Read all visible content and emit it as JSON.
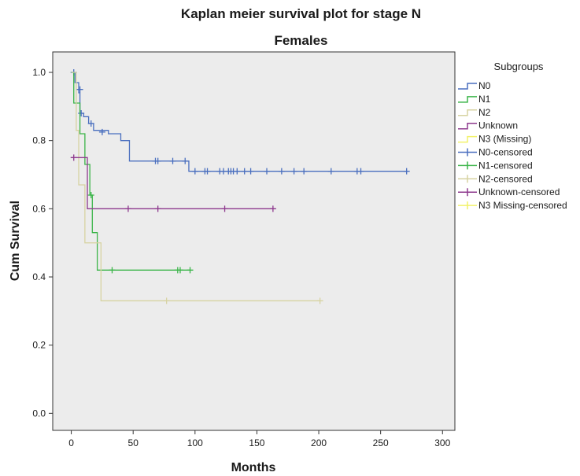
{
  "chart_data": {
    "type": "line",
    "title": "Kaplan meier survival plot for stage N",
    "subtitle": "Females",
    "xlabel": "Months",
    "ylabel": "Cum Survival",
    "xlim": [
      -15,
      310
    ],
    "ylim": [
      -0.05,
      1.06
    ],
    "xticks": [
      0,
      50,
      100,
      150,
      200,
      250,
      300
    ],
    "yticks": [
      0.0,
      0.2,
      0.4,
      0.6,
      0.8,
      1.0
    ],
    "grid": false,
    "legend_title": "Subgroups",
    "legend_position": "right",
    "plot_background": "#ececec",
    "series": [
      {
        "name": "N0",
        "color": "#4a6fbf",
        "steps": [
          [
            0,
            1.0
          ],
          [
            3,
            0.97
          ],
          [
            6,
            0.94
          ],
          [
            7,
            0.88
          ],
          [
            10,
            0.87
          ],
          [
            14,
            0.85
          ],
          [
            18,
            0.83
          ],
          [
            30,
            0.82
          ],
          [
            40,
            0.8
          ],
          [
            47,
            0.74
          ],
          [
            95,
            0.71
          ],
          [
            271,
            0.71
          ]
        ],
        "censored": [
          [
            2,
            1.0
          ],
          [
            7,
            0.95
          ],
          [
            8,
            0.88
          ],
          [
            16,
            0.85
          ],
          [
            25,
            0.825
          ],
          [
            68,
            0.74
          ],
          [
            70,
            0.74
          ],
          [
            82,
            0.74
          ],
          [
            92,
            0.74
          ],
          [
            100,
            0.71
          ],
          [
            108,
            0.71
          ],
          [
            110,
            0.71
          ],
          [
            120,
            0.71
          ],
          [
            123,
            0.71
          ],
          [
            127,
            0.71
          ],
          [
            129,
            0.71
          ],
          [
            131,
            0.71
          ],
          [
            134,
            0.71
          ],
          [
            140,
            0.71
          ],
          [
            145,
            0.71
          ],
          [
            158,
            0.71
          ],
          [
            170,
            0.71
          ],
          [
            180,
            0.71
          ],
          [
            188,
            0.71
          ],
          [
            210,
            0.71
          ],
          [
            231,
            0.71
          ],
          [
            234,
            0.71
          ],
          [
            271,
            0.71
          ]
        ]
      },
      {
        "name": "N1",
        "color": "#3cb54a",
        "steps": [
          [
            0,
            1.0
          ],
          [
            2,
            0.91
          ],
          [
            7,
            0.82
          ],
          [
            11,
            0.73
          ],
          [
            15,
            0.64
          ],
          [
            17,
            0.53
          ],
          [
            21,
            0.42
          ],
          [
            96,
            0.42
          ]
        ],
        "censored": [
          [
            16,
            0.64
          ],
          [
            33,
            0.42
          ],
          [
            86,
            0.42
          ],
          [
            88,
            0.42
          ],
          [
            96,
            0.42
          ]
        ]
      },
      {
        "name": "N2",
        "color": "#d7d3a2",
        "steps": [
          [
            0,
            1.0
          ],
          [
            4,
            0.83
          ],
          [
            6,
            0.67
          ],
          [
            11,
            0.5
          ],
          [
            20,
            0.5
          ],
          [
            24,
            0.33
          ],
          [
            201,
            0.33
          ]
        ],
        "censored": [
          [
            77,
            0.33
          ],
          [
            201,
            0.33
          ]
        ]
      },
      {
        "name": "Unknown",
        "color": "#8e3a8e",
        "steps": [
          [
            0,
            0.75
          ],
          [
            13,
            0.6
          ],
          [
            164,
            0.6
          ]
        ],
        "censored": [
          [
            2,
            0.75
          ],
          [
            46,
            0.6
          ],
          [
            70,
            0.6
          ],
          [
            124,
            0.6
          ],
          [
            163,
            0.6
          ]
        ]
      },
      {
        "name": "N3 (Missing)",
        "color": "#f2f26a",
        "steps": [],
        "censored": []
      }
    ],
    "legend_entries": [
      {
        "label": "N0",
        "kind": "line",
        "color": "#4a6fbf"
      },
      {
        "label": "N1",
        "kind": "line",
        "color": "#3cb54a"
      },
      {
        "label": "N2",
        "kind": "line",
        "color": "#d7d3a2"
      },
      {
        "label": "Unknown",
        "kind": "line",
        "color": "#8e3a8e"
      },
      {
        "label": "N3 (Missing)",
        "kind": "line",
        "color": "#f2f26a"
      },
      {
        "label": "N0-censored",
        "kind": "censor",
        "color": "#4a6fbf"
      },
      {
        "label": "N1-censored",
        "kind": "censor",
        "color": "#3cb54a"
      },
      {
        "label": "N2-censored",
        "kind": "censor",
        "color": "#d7d3a2"
      },
      {
        "label": "Unknown-censored",
        "kind": "censor",
        "color": "#8e3a8e"
      },
      {
        "label": "N3 Missing-censored",
        "kind": "censor",
        "color": "#f2f26a"
      }
    ]
  }
}
